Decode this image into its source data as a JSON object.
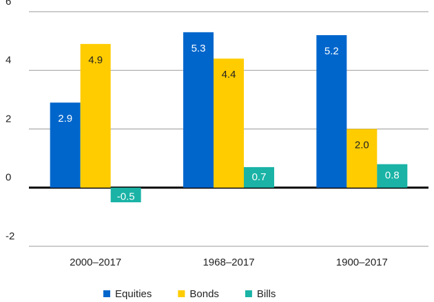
{
  "chart_data": {
    "type": "bar",
    "categories": [
      "2000–2017",
      "1968–2017",
      "1900–2017"
    ],
    "series": [
      {
        "name": "Equities",
        "color": "#0066cc",
        "label_color": "#ffffff",
        "values": [
          2.9,
          5.3,
          5.2
        ],
        "value_labels": [
          "2.9",
          "5.3",
          "5.2"
        ]
      },
      {
        "name": "Bonds",
        "color": "#ffcc00",
        "label_color": "#222222",
        "values": [
          4.9,
          4.4,
          2.0
        ],
        "value_labels": [
          "4.9",
          "4.4",
          "2.0"
        ]
      },
      {
        "name": "Bills",
        "color": "#1ab3a6",
        "label_color": "#ffffff",
        "values": [
          -0.5,
          0.7,
          0.8
        ],
        "value_labels": [
          "-0.5",
          "0.7",
          "0.8"
        ]
      }
    ],
    "ylim": [
      -2,
      6
    ],
    "yticks": [
      -2,
      0,
      2,
      4,
      6
    ],
    "grid": true,
    "legend": "bottom"
  }
}
